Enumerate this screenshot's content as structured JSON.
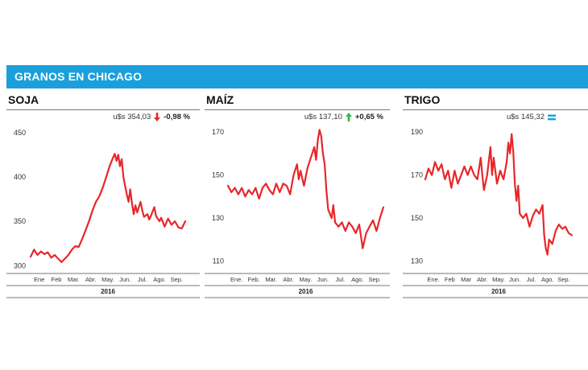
{
  "header": {
    "title": "GRANOS EN CHICAGO"
  },
  "panels": [
    {
      "title": "SOJA",
      "price": "u$s 354,03",
      "change": "-0,98 %",
      "direction": "down",
      "arrow_icon": "arrow-down-icon",
      "arrow_color": "#e8262b",
      "year": "2016",
      "chart_data": {
        "type": "line",
        "categories": [
          "Ene",
          "Feb",
          "Mar.",
          "Abr.",
          "May.",
          "Jun.",
          "Jul.",
          "Ago.",
          "Sep."
        ],
        "y_ticks": [
          300,
          350,
          400,
          450
        ],
        "ylim": [
          293,
          458
        ],
        "xlim": [
          0,
          9
        ],
        "line_color": "#e8262b",
        "points": [
          [
            0,
            310
          ],
          [
            0.2,
            318
          ],
          [
            0.4,
            312
          ],
          [
            0.6,
            316
          ],
          [
            0.8,
            313
          ],
          [
            1.0,
            315
          ],
          [
            1.2,
            309
          ],
          [
            1.4,
            312
          ],
          [
            1.6,
            308
          ],
          [
            1.8,
            304
          ],
          [
            2.0,
            308
          ],
          [
            2.2,
            312
          ],
          [
            2.4,
            318
          ],
          [
            2.6,
            322
          ],
          [
            2.8,
            321
          ],
          [
            3.0,
            330
          ],
          [
            3.2,
            340
          ],
          [
            3.4,
            350
          ],
          [
            3.6,
            362
          ],
          [
            3.8,
            372
          ],
          [
            4.0,
            378
          ],
          [
            4.2,
            388
          ],
          [
            4.4,
            400
          ],
          [
            4.6,
            412
          ],
          [
            4.8,
            422
          ],
          [
            4.9,
            426
          ],
          [
            5.0,
            418
          ],
          [
            5.1,
            425
          ],
          [
            5.2,
            412
          ],
          [
            5.3,
            420
          ],
          [
            5.4,
            400
          ],
          [
            5.5,
            390
          ],
          [
            5.6,
            380
          ],
          [
            5.7,
            372
          ],
          [
            5.8,
            386
          ],
          [
            5.9,
            370
          ],
          [
            6.0,
            358
          ],
          [
            6.1,
            368
          ],
          [
            6.2,
            360
          ],
          [
            6.4,
            372
          ],
          [
            6.5,
            362
          ],
          [
            6.6,
            355
          ],
          [
            6.8,
            358
          ],
          [
            6.9,
            352
          ],
          [
            7.0,
            356
          ],
          [
            7.2,
            366
          ],
          [
            7.3,
            356
          ],
          [
            7.5,
            350
          ],
          [
            7.6,
            354
          ],
          [
            7.8,
            344
          ],
          [
            8.0,
            353
          ],
          [
            8.2,
            346
          ],
          [
            8.4,
            350
          ],
          [
            8.6,
            343
          ],
          [
            8.8,
            342
          ],
          [
            9.0,
            350
          ]
        ]
      }
    },
    {
      "title": "MAÍZ",
      "price": "u$s 137,10",
      "change": "+0,65 %",
      "direction": "up",
      "arrow_icon": "arrow-up-icon",
      "arrow_color": "#33b54a",
      "year": "2016",
      "chart_data": {
        "type": "line",
        "categories": [
          "Ene.",
          "Feb.",
          "Mar.",
          "Abr.",
          "May.",
          "Jun.",
          "Jul.",
          "Ago.",
          "Sep."
        ],
        "y_ticks": [
          110,
          130,
          150,
          170
        ],
        "ylim": [
          105,
          173
        ],
        "xlim": [
          0,
          9
        ],
        "line_color": "#e8262b",
        "points": [
          [
            0,
            145
          ],
          [
            0.2,
            142
          ],
          [
            0.4,
            144
          ],
          [
            0.6,
            141
          ],
          [
            0.8,
            144
          ],
          [
            1.0,
            140
          ],
          [
            1.2,
            143
          ],
          [
            1.4,
            141
          ],
          [
            1.6,
            144
          ],
          [
            1.8,
            139
          ],
          [
            2.0,
            144
          ],
          [
            2.2,
            146
          ],
          [
            2.4,
            143
          ],
          [
            2.6,
            141
          ],
          [
            2.8,
            146
          ],
          [
            3.0,
            142
          ],
          [
            3.2,
            146
          ],
          [
            3.4,
            145
          ],
          [
            3.6,
            141
          ],
          [
            3.8,
            150
          ],
          [
            4.0,
            155
          ],
          [
            4.1,
            148
          ],
          [
            4.2,
            152
          ],
          [
            4.4,
            145
          ],
          [
            4.6,
            153
          ],
          [
            4.8,
            158
          ],
          [
            5.0,
            163
          ],
          [
            5.1,
            157
          ],
          [
            5.2,
            166
          ],
          [
            5.3,
            171
          ],
          [
            5.4,
            168
          ],
          [
            5.5,
            160
          ],
          [
            5.6,
            155
          ],
          [
            5.7,
            143
          ],
          [
            5.8,
            134
          ],
          [
            6.0,
            130
          ],
          [
            6.1,
            136
          ],
          [
            6.2,
            128
          ],
          [
            6.4,
            126
          ],
          [
            6.6,
            128
          ],
          [
            6.8,
            124
          ],
          [
            7.0,
            128
          ],
          [
            7.2,
            126
          ],
          [
            7.4,
            123
          ],
          [
            7.6,
            127
          ],
          [
            7.8,
            116
          ],
          [
            8.0,
            123
          ],
          [
            8.2,
            126
          ],
          [
            8.4,
            129
          ],
          [
            8.6,
            124
          ],
          [
            8.8,
            130
          ],
          [
            9.0,
            135
          ]
        ]
      }
    },
    {
      "title": "TRIGO",
      "price": "u$s 145,32",
      "change": "",
      "direction": "flat",
      "arrow_icon": "equals-icon",
      "arrow_color": "#1a9fdc",
      "year": "2016",
      "chart_data": {
        "type": "line",
        "categories": [
          "Ene.",
          "Feb",
          "Mar",
          "Abr.",
          "May.",
          "Jun.",
          "Jul.",
          "Ago.",
          "Sep."
        ],
        "y_ticks": [
          130,
          150,
          170,
          190
        ],
        "ylim": [
          125,
          193
        ],
        "xlim": [
          0,
          9
        ],
        "line_color": "#e8262b",
        "points": [
          [
            0,
            168
          ],
          [
            0.2,
            173
          ],
          [
            0.4,
            170
          ],
          [
            0.6,
            176
          ],
          [
            0.8,
            172
          ],
          [
            1.0,
            175
          ],
          [
            1.2,
            168
          ],
          [
            1.4,
            172
          ],
          [
            1.6,
            164
          ],
          [
            1.8,
            172
          ],
          [
            2.0,
            166
          ],
          [
            2.2,
            170
          ],
          [
            2.4,
            174
          ],
          [
            2.6,
            170
          ],
          [
            2.8,
            174
          ],
          [
            3.0,
            170
          ],
          [
            3.2,
            168
          ],
          [
            3.4,
            178
          ],
          [
            3.5,
            170
          ],
          [
            3.6,
            163
          ],
          [
            3.8,
            170
          ],
          [
            4.0,
            183
          ],
          [
            4.1,
            170
          ],
          [
            4.2,
            178
          ],
          [
            4.4,
            166
          ],
          [
            4.6,
            172
          ],
          [
            4.8,
            168
          ],
          [
            5.0,
            176
          ],
          [
            5.1,
            185
          ],
          [
            5.2,
            180
          ],
          [
            5.3,
            189
          ],
          [
            5.4,
            181
          ],
          [
            5.5,
            166
          ],
          [
            5.6,
            158
          ],
          [
            5.7,
            165
          ],
          [
            5.8,
            152
          ],
          [
            6.0,
            150
          ],
          [
            6.2,
            152
          ],
          [
            6.4,
            146
          ],
          [
            6.6,
            151
          ],
          [
            6.8,
            154
          ],
          [
            7.0,
            152
          ],
          [
            7.2,
            156
          ],
          [
            7.3,
            142
          ],
          [
            7.4,
            136
          ],
          [
            7.5,
            133
          ],
          [
            7.6,
            140
          ],
          [
            7.8,
            138
          ],
          [
            8.0,
            144
          ],
          [
            8.2,
            147
          ],
          [
            8.4,
            145
          ],
          [
            8.6,
            146
          ],
          [
            8.8,
            143
          ],
          [
            9.0,
            142
          ]
        ]
      }
    }
  ]
}
